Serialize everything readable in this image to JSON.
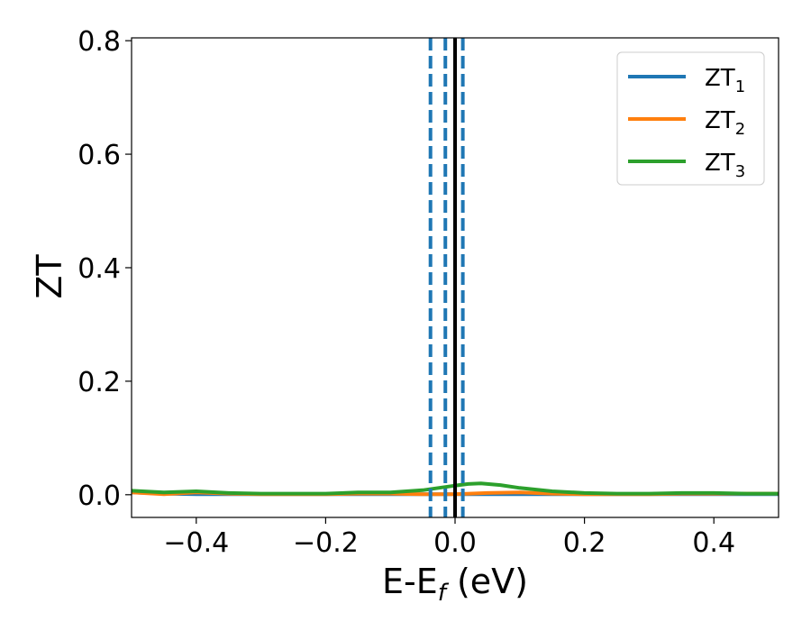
{
  "chart_data": {
    "type": "line",
    "xlabel_main": "E-E",
    "xlabel_sub": "f",
    "xlabel_unit": " (eV)",
    "ylabel": "ZT",
    "xlim": [
      -0.5,
      0.5
    ],
    "ylim": [
      -0.04,
      0.805
    ],
    "xticks": [
      -0.4,
      -0.2,
      0.0,
      0.2,
      0.4
    ],
    "xtick_labels": [
      "−0.4",
      "−0.2",
      "0.0",
      "0.2",
      "0.4"
    ],
    "yticks": [
      0.0,
      0.2,
      0.4,
      0.6,
      0.8
    ],
    "ytick_labels": [
      "0.0",
      "0.2",
      "0.4",
      "0.6",
      "0.8"
    ],
    "grid": false,
    "legend_position": "top-right",
    "series": [
      {
        "name_main": "ZT",
        "name_sub": "1",
        "color": "#1f77b4",
        "x": [
          -0.5,
          -0.45,
          -0.4,
          -0.35,
          -0.3,
          -0.25,
          -0.2,
          -0.15,
          -0.1,
          -0.05,
          0.0,
          0.05,
          0.1,
          0.15,
          0.2,
          0.25,
          0.3,
          0.35,
          0.4,
          0.45,
          0.5
        ],
        "y": [
          0.004,
          0.002,
          0.001,
          0.001,
          0.001,
          0.001,
          0.001,
          0.001,
          0.001,
          0.001,
          0.001,
          0.001,
          0.001,
          0.001,
          0.001,
          0.001,
          0.001,
          0.001,
          0.001,
          0.001,
          0.001
        ]
      },
      {
        "name_main": "ZT",
        "name_sub": "2",
        "color": "#ff7f0e",
        "x": [
          -0.5,
          -0.45,
          -0.4,
          -0.35,
          -0.3,
          -0.25,
          -0.2,
          -0.15,
          -0.1,
          -0.05,
          0.0,
          0.05,
          0.1,
          0.15,
          0.2,
          0.25,
          0.3,
          0.35,
          0.4,
          0.45,
          0.5
        ],
        "y": [
          0.004,
          0.001,
          0.004,
          0.002,
          0.001,
          0.001,
          0.001,
          0.002,
          0.002,
          0.001,
          0.001,
          0.003,
          0.004,
          0.002,
          0.001,
          0.001,
          0.001,
          0.002,
          0.002,
          0.002,
          0.002
        ]
      },
      {
        "name_main": "ZT",
        "name_sub": "3",
        "color": "#2ca02c",
        "x": [
          -0.5,
          -0.45,
          -0.4,
          -0.35,
          -0.3,
          -0.25,
          -0.2,
          -0.15,
          -0.1,
          -0.05,
          0.0,
          0.02,
          0.04,
          0.07,
          0.1,
          0.15,
          0.2,
          0.25,
          0.3,
          0.35,
          0.4,
          0.45,
          0.5
        ],
        "y": [
          0.007,
          0.004,
          0.006,
          0.003,
          0.002,
          0.002,
          0.002,
          0.004,
          0.004,
          0.008,
          0.016,
          0.019,
          0.02,
          0.017,
          0.012,
          0.006,
          0.003,
          0.002,
          0.002,
          0.003,
          0.003,
          0.002,
          0.002
        ]
      }
    ],
    "vertical_lines": [
      {
        "x": -0.038,
        "style": "dashed",
        "color": "#1f77b4"
      },
      {
        "x": -0.015,
        "style": "dashed",
        "color": "#1f77b4"
      },
      {
        "x": 0.0,
        "style": "solid",
        "color": "#000000"
      },
      {
        "x": 0.012,
        "style": "dashed",
        "color": "#1f77b4"
      }
    ]
  }
}
